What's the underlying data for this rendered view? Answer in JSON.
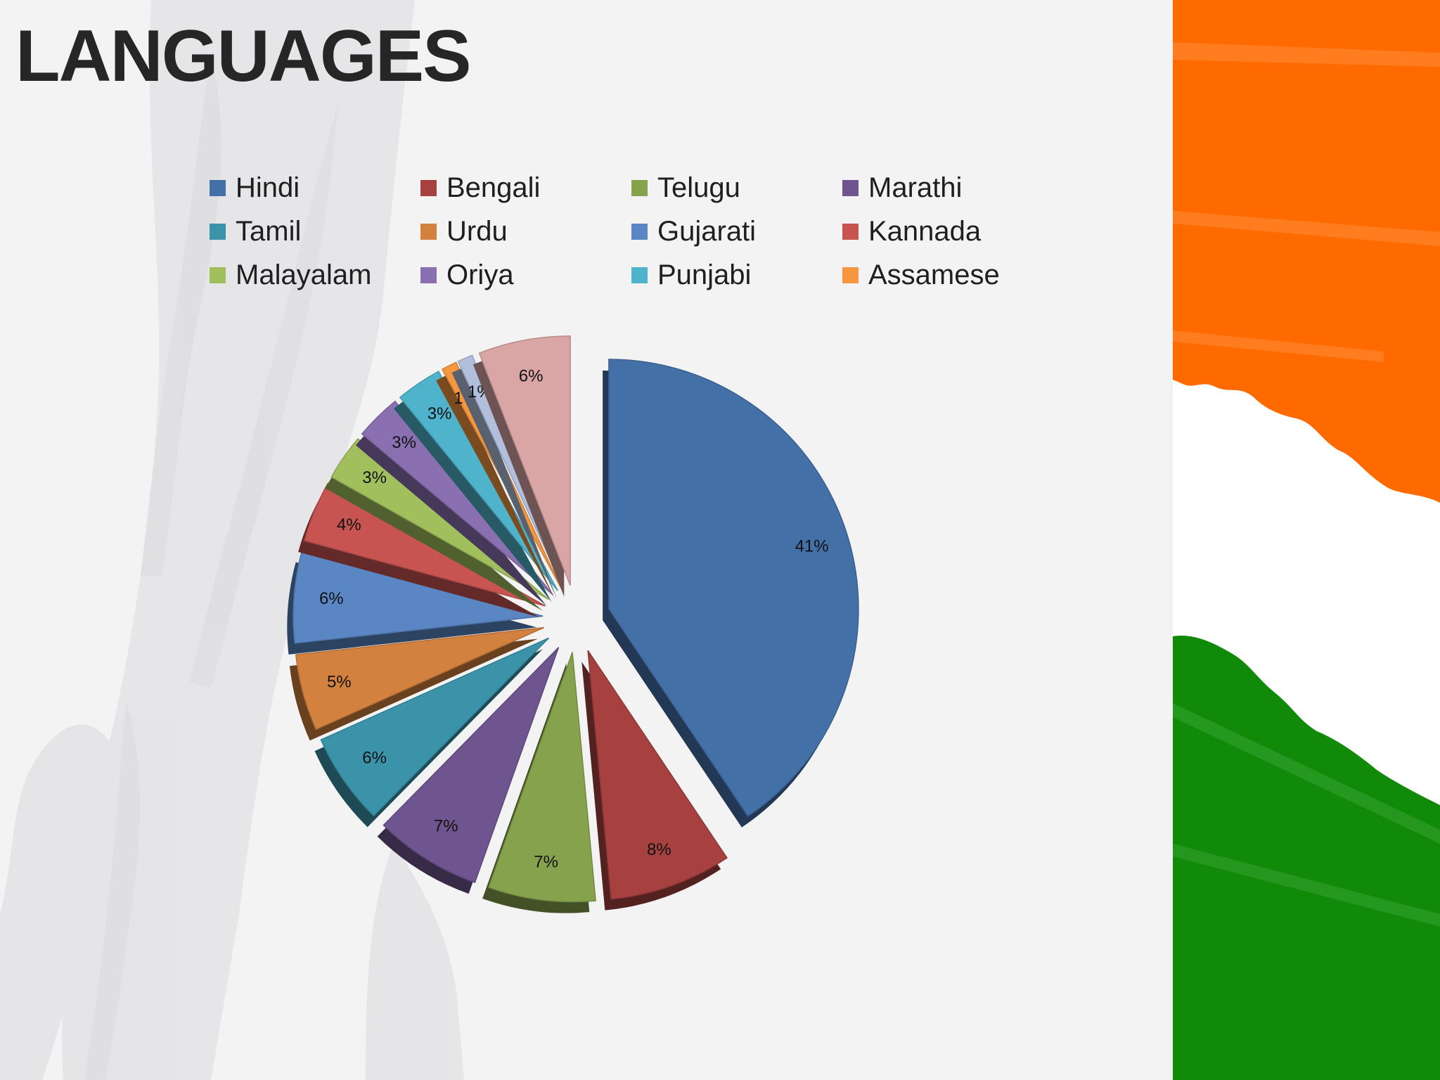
{
  "page": {
    "title": "LANGUAGES",
    "title_color": "#262626",
    "background_color": "#f3f3f4",
    "decoration": {
      "name": "indian-flag-brush-strokes",
      "colors": {
        "saffron": "#ff6a00",
        "white": "#ffffff",
        "green": "#118a0a"
      }
    }
  },
  "chart_data": {
    "type": "pie",
    "style": "3d-exploded",
    "title": "",
    "legend_position": "top",
    "slices": [
      {
        "name": "Hindi",
        "value": 41,
        "label": "41%",
        "color": "#4470a8"
      },
      {
        "name": "Bengali",
        "value": 8,
        "label": "8%",
        "color": "#a6413f"
      },
      {
        "name": "Telugu",
        "value": 7,
        "label": "7%",
        "color": "#86a24d"
      },
      {
        "name": "Marathi",
        "value": 7,
        "label": "7%",
        "color": "#6e5590"
      },
      {
        "name": "Tamil",
        "value": 6,
        "label": "6%",
        "color": "#3b93a9"
      },
      {
        "name": "Urdu",
        "value": 5,
        "label": "5%",
        "color": "#d3813e"
      },
      {
        "name": "Gujarati",
        "value": 6,
        "label": "6%",
        "color": "#5a86c4"
      },
      {
        "name": "Kannada",
        "value": 4,
        "label": "4%",
        "color": "#c75451"
      },
      {
        "name": "Malayalam",
        "value": 3,
        "label": "3%",
        "color": "#a2bf5e"
      },
      {
        "name": "Oriya",
        "value": 3,
        "label": "3%",
        "color": "#8a70b0"
      },
      {
        "name": "Punjabi",
        "value": 3,
        "label": "3%",
        "color": "#4fb3cb"
      },
      {
        "name": "Assamese",
        "value": 1,
        "label": "1%",
        "color": "#f6963f"
      },
      {
        "name": "",
        "value": 1,
        "label": "1%",
        "color": "#b1bfdc"
      },
      {
        "name": "",
        "value": 6,
        "label": "6%",
        "color": "#d9a6a5"
      }
    ]
  }
}
